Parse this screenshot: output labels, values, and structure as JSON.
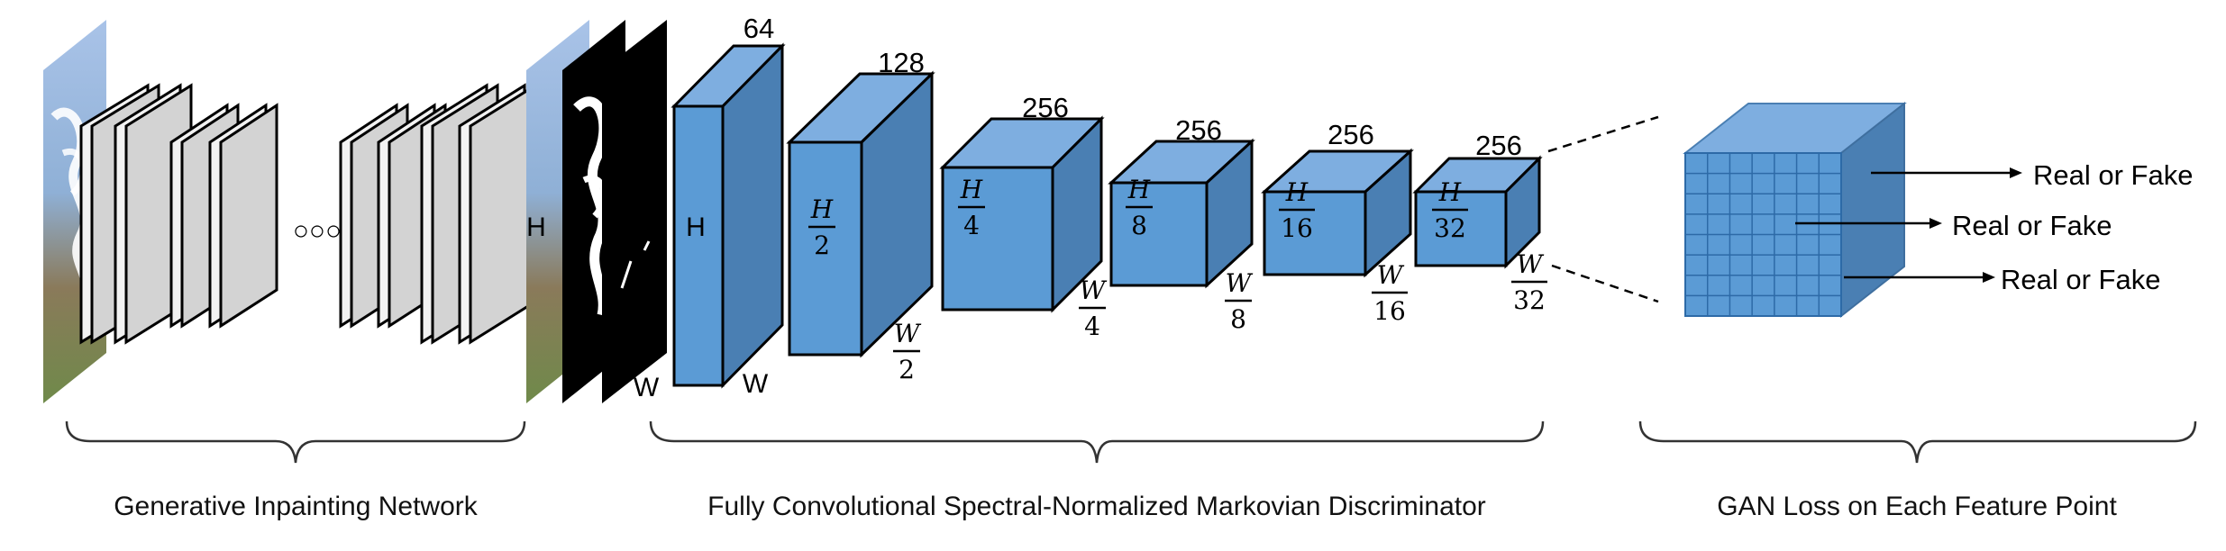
{
  "colors": {
    "box_front": "#5b9bd5",
    "box_top": "#7eaee0",
    "box_side": "#4a7fb3",
    "box_edge": "#000000",
    "generator_plate": "#d3d3d3",
    "grid_line": "#2d6aa7"
  },
  "generator": {
    "ellipsis": "○○○"
  },
  "input": {
    "height_label": "H",
    "width_label": "W"
  },
  "discriminator": {
    "layers": [
      {
        "channels": "64",
        "h_label": "H",
        "w_label": "W"
      },
      {
        "channels": "128",
        "h_num": "H",
        "h_den": "2",
        "w_num": "W",
        "w_den": "2"
      },
      {
        "channels": "256",
        "h_num": "H",
        "h_den": "4",
        "w_num": "W",
        "w_den": "4"
      },
      {
        "channels": "256",
        "h_num": "H",
        "h_den": "8",
        "w_num": "W",
        "w_den": "8"
      },
      {
        "channels": "256",
        "h_num": "H",
        "h_den": "16",
        "w_num": "W",
        "w_den": "16"
      },
      {
        "channels": "256",
        "h_num": "H",
        "h_den": "32",
        "w_num": "W",
        "w_den": "32"
      }
    ]
  },
  "gan_loss": {
    "outputs": [
      "Real or Fake",
      "Real or Fake",
      "Real or Fake"
    ]
  },
  "captions": {
    "generator": "Generative Inpainting Network",
    "discriminator": "Fully Convolutional Spectral-Normalized Markovian Discriminator",
    "gan_loss": "GAN Loss on Each Feature Point"
  }
}
